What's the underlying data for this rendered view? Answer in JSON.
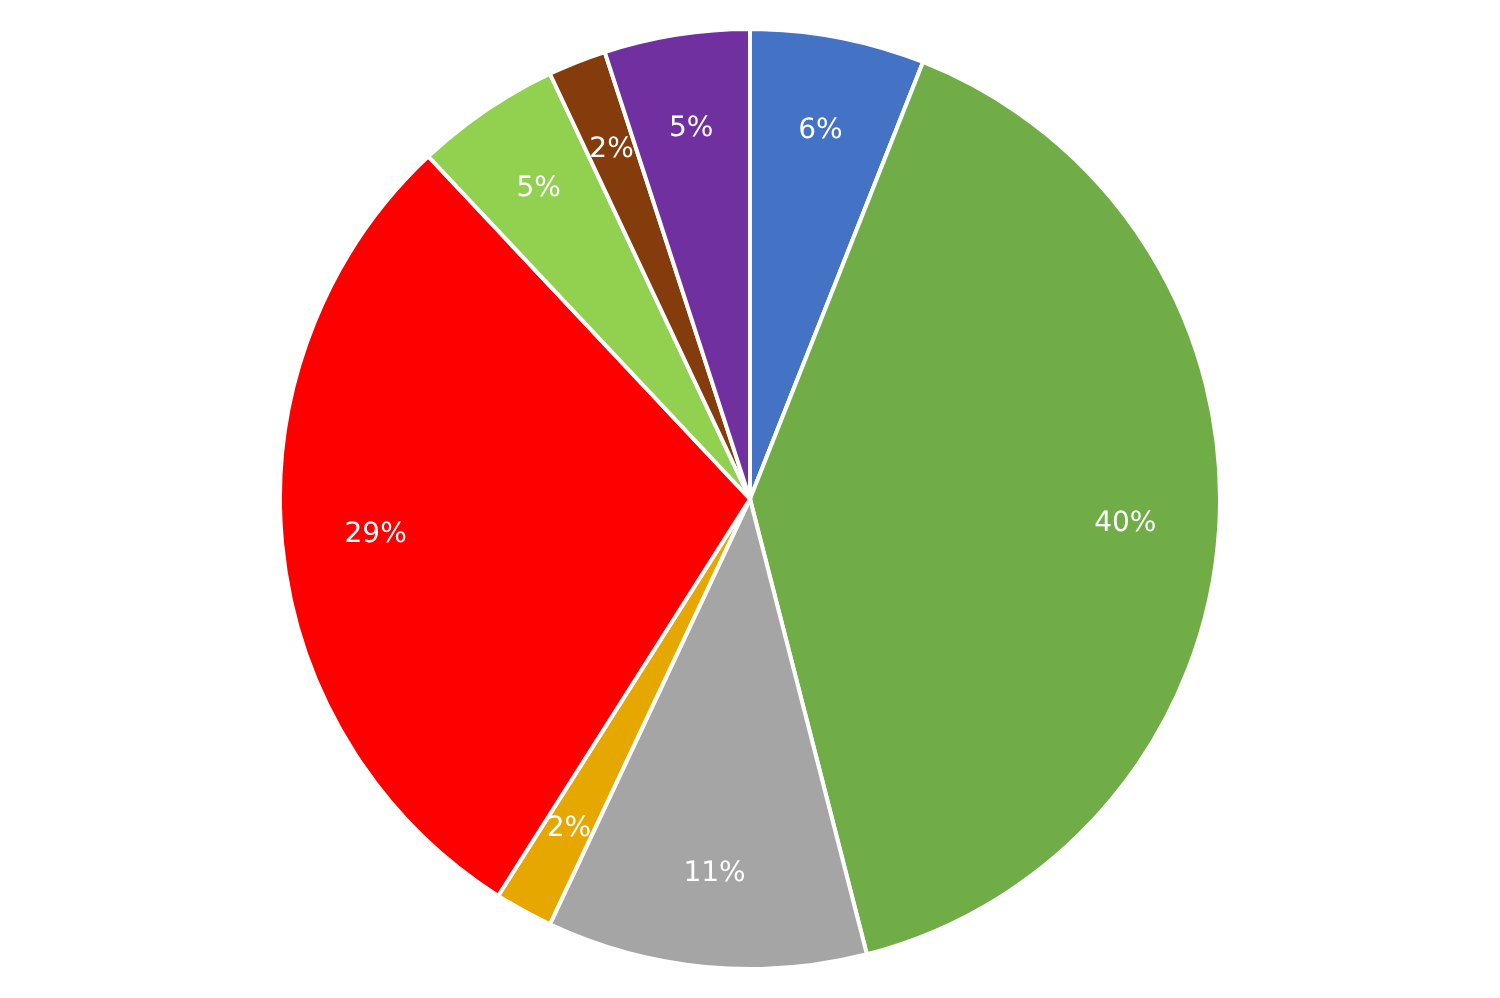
{
  "chart_data": {
    "type": "pie",
    "categories": [
      null,
      null,
      null,
      null,
      null,
      null,
      null,
      null
    ],
    "values": [
      6,
      40,
      11,
      2,
      29,
      5,
      2,
      5
    ],
    "colors": [
      "#4472c4",
      "#70ad47",
      "#a5a5a5",
      "#e6a800",
      "#ff0000",
      "#92d050",
      "#843c0c",
      "#7030a0"
    ],
    "value_labels": [
      "6%",
      "40%",
      "11%",
      "2%",
      "29%",
      "5%",
      "2%",
      "5%"
    ]
  }
}
